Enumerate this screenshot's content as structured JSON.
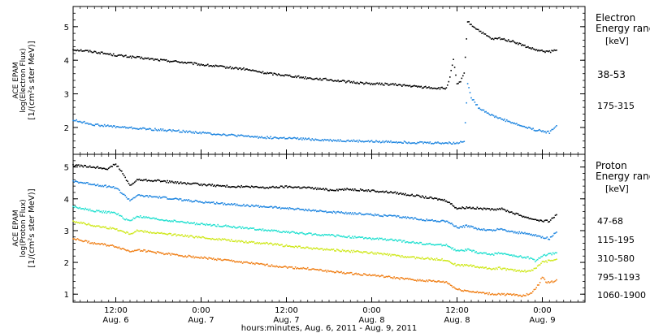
{
  "chart_data": [
    {
      "type": "line",
      "panel": "electron",
      "ylabel_lines": [
        "ACE EPAM",
        "log(Electron Flux)",
        "[1/(cm²s ster MeV)]"
      ],
      "legend_title_lines": [
        "Electron",
        "Energy ranges",
        "[keV]"
      ],
      "ylim": [
        1.2,
        5.6
      ],
      "yticks": [
        2,
        3,
        4,
        5
      ],
      "series": [
        {
          "name": "38-53",
          "color": "#000000",
          "points": [
            [
              0,
              4.32
            ],
            [
              6,
              4.25
            ],
            [
              12,
              4.15
            ],
            [
              18,
              4.08
            ],
            [
              24,
              4.01
            ],
            [
              30,
              3.95
            ],
            [
              36,
              3.87
            ],
            [
              42,
              3.8
            ],
            [
              48,
              3.74
            ],
            [
              54,
              3.62
            ],
            [
              60,
              3.55
            ],
            [
              66,
              3.47
            ],
            [
              72,
              3.42
            ],
            [
              78,
              3.35
            ],
            [
              84,
              3.3
            ],
            [
              90,
              3.28
            ],
            [
              96,
              3.22
            ],
            [
              102,
              3.17
            ],
            [
              105,
              3.16
            ],
            [
              106,
              3.5
            ],
            [
              107,
              4.0
            ],
            [
              108,
              3.3
            ],
            [
              109,
              3.35
            ],
            [
              110,
              3.6
            ],
            [
              111,
              5.15
            ],
            [
              112,
              5.05
            ],
            [
              114,
              4.9
            ],
            [
              116,
              4.75
            ],
            [
              118,
              4.62
            ],
            [
              120,
              4.65
            ],
            [
              124,
              4.55
            ],
            [
              128,
              4.38
            ],
            [
              131,
              4.28
            ],
            [
              134,
              4.25
            ],
            [
              136,
              4.3
            ]
          ]
        },
        {
          "name": "175-315",
          "color": "#1f86e0",
          "points": [
            [
              0,
              2.22
            ],
            [
              6,
              2.08
            ],
            [
              12,
              2.02
            ],
            [
              18,
              1.97
            ],
            [
              24,
              1.93
            ],
            [
              30,
              1.89
            ],
            [
              36,
              1.84
            ],
            [
              42,
              1.79
            ],
            [
              48,
              1.74
            ],
            [
              54,
              1.7
            ],
            [
              60,
              1.68
            ],
            [
              66,
              1.65
            ],
            [
              72,
              1.62
            ],
            [
              78,
              1.6
            ],
            [
              84,
              1.58
            ],
            [
              90,
              1.57
            ],
            [
              96,
              1.55
            ],
            [
              102,
              1.54
            ],
            [
              108,
              1.53
            ],
            [
              110,
              1.6
            ],
            [
              111,
              3.3
            ],
            [
              112,
              2.9
            ],
            [
              114,
              2.6
            ],
            [
              118,
              2.35
            ],
            [
              122,
              2.2
            ],
            [
              126,
              2.05
            ],
            [
              130,
              1.93
            ],
            [
              134,
              1.85
            ],
            [
              136,
              2.05
            ]
          ]
        }
      ]
    },
    {
      "type": "line",
      "panel": "proton",
      "ylabel_lines": [
        "ACE EPAM",
        "log(Proton Flux)",
        "[1/(cm²s ster MeV)]"
      ],
      "legend_title_lines": [
        "Proton",
        "Energy ranges",
        "[keV]"
      ],
      "ylim": [
        0.75,
        5.4
      ],
      "yticks": [
        1,
        2,
        3,
        4,
        5
      ],
      "xlabel": "hours:minutes, Aug.  6, 2011 - Aug.  9, 2011",
      "x_start_hours": 0,
      "x_end_hours": 144,
      "x_ticks": [
        {
          "hour": 12,
          "time": "12:00",
          "date": "Aug. 6"
        },
        {
          "hour": 36,
          "time": "0:00",
          "date": "Aug. 7"
        },
        {
          "hour": 60,
          "time": "12:00",
          "date": "Aug. 7"
        },
        {
          "hour": 84,
          "time": "0:00",
          "date": "Aug. 8"
        },
        {
          "hour": 108,
          "time": "12:00",
          "date": "Aug. 8"
        },
        {
          "hour": 132,
          "time": "0:00",
          "date": "Aug. 9"
        }
      ],
      "series": [
        {
          "name": "47-68",
          "color": "#000000",
          "points": [
            [
              0,
              5.05
            ],
            [
              6,
              5.0
            ],
            [
              10,
              4.95
            ],
            [
              12,
              5.1
            ],
            [
              14,
              4.8
            ],
            [
              16,
              4.4
            ],
            [
              18,
              4.6
            ],
            [
              24,
              4.57
            ],
            [
              30,
              4.5
            ],
            [
              36,
              4.45
            ],
            [
              42,
              4.4
            ],
            [
              48,
              4.38
            ],
            [
              54,
              4.35
            ],
            [
              60,
              4.38
            ],
            [
              66,
              4.35
            ],
            [
              72,
              4.28
            ],
            [
              78,
              4.3
            ],
            [
              84,
              4.25
            ],
            [
              90,
              4.2
            ],
            [
              96,
              4.1
            ],
            [
              102,
              4.0
            ],
            [
              105,
              3.95
            ],
            [
              108,
              3.7
            ],
            [
              111,
              3.73
            ],
            [
              114,
              3.7
            ],
            [
              118,
              3.65
            ],
            [
              120,
              3.7
            ],
            [
              124,
              3.55
            ],
            [
              128,
              3.4
            ],
            [
              132,
              3.3
            ],
            [
              134,
              3.3
            ],
            [
              136,
              3.5
            ]
          ]
        },
        {
          "name": "115-195",
          "color": "#1f86e0",
          "points": [
            [
              0,
              4.55
            ],
            [
              6,
              4.45
            ],
            [
              12,
              4.35
            ],
            [
              14,
              4.15
            ],
            [
              16,
              3.95
            ],
            [
              18,
              4.1
            ],
            [
              24,
              4.05
            ],
            [
              30,
              3.98
            ],
            [
              36,
              3.9
            ],
            [
              42,
              3.85
            ],
            [
              48,
              3.8
            ],
            [
              54,
              3.75
            ],
            [
              60,
              3.7
            ],
            [
              66,
              3.65
            ],
            [
              72,
              3.58
            ],
            [
              78,
              3.55
            ],
            [
              84,
              3.5
            ],
            [
              90,
              3.45
            ],
            [
              96,
              3.38
            ],
            [
              102,
              3.3
            ],
            [
              105,
              3.3
            ],
            [
              108,
              3.1
            ],
            [
              111,
              3.15
            ],
            [
              114,
              3.05
            ],
            [
              118,
              3.0
            ],
            [
              120,
              3.05
            ],
            [
              124,
              2.95
            ],
            [
              128,
              2.9
            ],
            [
              132,
              2.8
            ],
            [
              134,
              2.75
            ],
            [
              136,
              2.95
            ]
          ]
        },
        {
          "name": "310-580",
          "color": "#22e0d0",
          "points": [
            [
              0,
              3.75
            ],
            [
              6,
              3.62
            ],
            [
              12,
              3.55
            ],
            [
              14,
              3.4
            ],
            [
              16,
              3.3
            ],
            [
              18,
              3.45
            ],
            [
              24,
              3.35
            ],
            [
              30,
              3.28
            ],
            [
              36,
              3.2
            ],
            [
              42,
              3.15
            ],
            [
              48,
              3.08
            ],
            [
              54,
              3.02
            ],
            [
              60,
              2.95
            ],
            [
              66,
              2.9
            ],
            [
              72,
              2.85
            ],
            [
              78,
              2.8
            ],
            [
              84,
              2.75
            ],
            [
              90,
              2.7
            ],
            [
              96,
              2.62
            ],
            [
              102,
              2.55
            ],
            [
              105,
              2.55
            ],
            [
              108,
              2.35
            ],
            [
              111,
              2.4
            ],
            [
              114,
              2.3
            ],
            [
              118,
              2.25
            ],
            [
              120,
              2.3
            ],
            [
              124,
              2.2
            ],
            [
              128,
              2.15
            ],
            [
              130,
              2.05
            ],
            [
              132,
              2.2
            ],
            [
              134,
              2.25
            ],
            [
              136,
              2.3
            ]
          ]
        },
        {
          "name": "795-1193",
          "color": "#cfe81c",
          "points": [
            [
              0,
              3.3
            ],
            [
              6,
              3.15
            ],
            [
              12,
              3.05
            ],
            [
              16,
              2.9
            ],
            [
              18,
              3.0
            ],
            [
              24,
              2.92
            ],
            [
              30,
              2.85
            ],
            [
              36,
              2.78
            ],
            [
              42,
              2.72
            ],
            [
              48,
              2.65
            ],
            [
              54,
              2.6
            ],
            [
              60,
              2.52
            ],
            [
              66,
              2.45
            ],
            [
              72,
              2.4
            ],
            [
              78,
              2.35
            ],
            [
              84,
              2.3
            ],
            [
              90,
              2.22
            ],
            [
              96,
              2.15
            ],
            [
              102,
              2.1
            ],
            [
              105,
              2.08
            ],
            [
              108,
              1.9
            ],
            [
              111,
              1.92
            ],
            [
              114,
              1.85
            ],
            [
              118,
              1.8
            ],
            [
              120,
              1.82
            ],
            [
              124,
              1.75
            ],
            [
              128,
              1.72
            ],
            [
              130,
              1.8
            ],
            [
              132,
              2.0
            ],
            [
              134,
              2.05
            ],
            [
              136,
              2.1
            ]
          ]
        },
        {
          "name": "1060-1900",
          "color": "#f08018",
          "points": [
            [
              0,
              2.75
            ],
            [
              6,
              2.6
            ],
            [
              12,
              2.5
            ],
            [
              16,
              2.35
            ],
            [
              18,
              2.4
            ],
            [
              24,
              2.3
            ],
            [
              30,
              2.22
            ],
            [
              36,
              2.15
            ],
            [
              42,
              2.08
            ],
            [
              48,
              2.0
            ],
            [
              54,
              1.92
            ],
            [
              60,
              1.85
            ],
            [
              66,
              1.8
            ],
            [
              72,
              1.72
            ],
            [
              78,
              1.65
            ],
            [
              84,
              1.6
            ],
            [
              90,
              1.52
            ],
            [
              96,
              1.45
            ],
            [
              102,
              1.4
            ],
            [
              105,
              1.38
            ],
            [
              108,
              1.15
            ],
            [
              111,
              1.1
            ],
            [
              114,
              1.05
            ],
            [
              118,
              1.0
            ],
            [
              120,
              1.0
            ],
            [
              124,
              0.98
            ],
            [
              127,
              0.95
            ],
            [
              129,
              1.05
            ],
            [
              131,
              1.3
            ],
            [
              132,
              1.55
            ],
            [
              133,
              1.4
            ],
            [
              134,
              1.35
            ],
            [
              136,
              1.45
            ]
          ]
        }
      ]
    }
  ]
}
